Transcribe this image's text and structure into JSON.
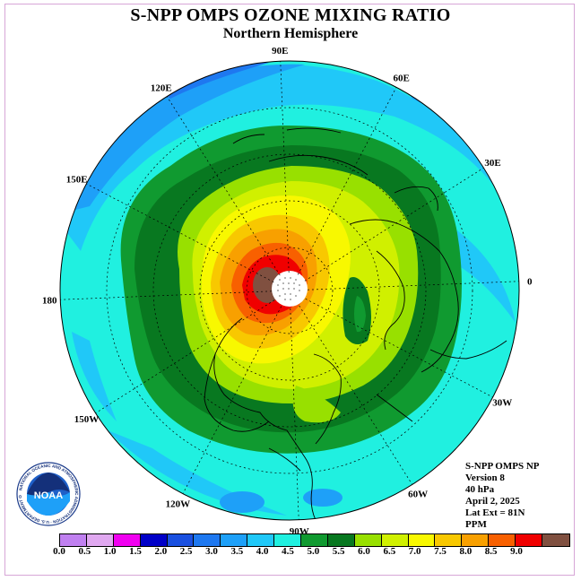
{
  "header": {
    "title": "S-NPP OMPS OZONE MIXING RATIO",
    "subtitle": "Northern Hemisphere"
  },
  "longitude_labels": [
    {
      "label": "90E",
      "lon": 90
    },
    {
      "label": "60E",
      "lon": 60
    },
    {
      "label": "30E",
      "lon": 30
    },
    {
      "label": "0",
      "lon": 0
    },
    {
      "label": "30W",
      "lon": -30
    },
    {
      "label": "60W",
      "lon": -60
    },
    {
      "label": "90W",
      "lon": -90
    },
    {
      "label": "120W",
      "lon": -120
    },
    {
      "label": "150W",
      "lon": -150
    },
    {
      "label": "180",
      "lon": 180
    },
    {
      "label": "150E",
      "lon": 150
    },
    {
      "label": "120E",
      "lon": 120
    }
  ],
  "info": {
    "product": "S-NPP OMPS NP",
    "version": "Version 8",
    "level": "40 hPa",
    "date": "April 2, 2025",
    "lat_ext": "Lat Ext = 81N",
    "units": "PPM"
  },
  "logo": {
    "text": "NOAA",
    "ring_text": "NATIONAL OCEANIC AND ATMOSPHERIC ADMINISTRATION · U.S. DEPARTMENT OF COMMERCE"
  },
  "colorbar": {
    "ticks": [
      "0.0",
      "0.5",
      "1.0",
      "1.5",
      "2.0",
      "2.5",
      "3.0",
      "3.5",
      "4.0",
      "4.5",
      "5.0",
      "5.5",
      "6.0",
      "6.5",
      "7.0",
      "7.5",
      "8.0",
      "8.5",
      "9.0"
    ],
    "colors": [
      "#c080f0",
      "#e0a8f0",
      "#f000f0",
      "#0000c8",
      "#1a50e0",
      "#1e78f0",
      "#1ea0f8",
      "#20c8f8",
      "#20f0e0",
      "#109a30",
      "#087820",
      "#98e000",
      "#d0f000",
      "#f8f800",
      "#f8c800",
      "#f8a000",
      "#f86000",
      "#f00000",
      "#805040"
    ]
  }
}
